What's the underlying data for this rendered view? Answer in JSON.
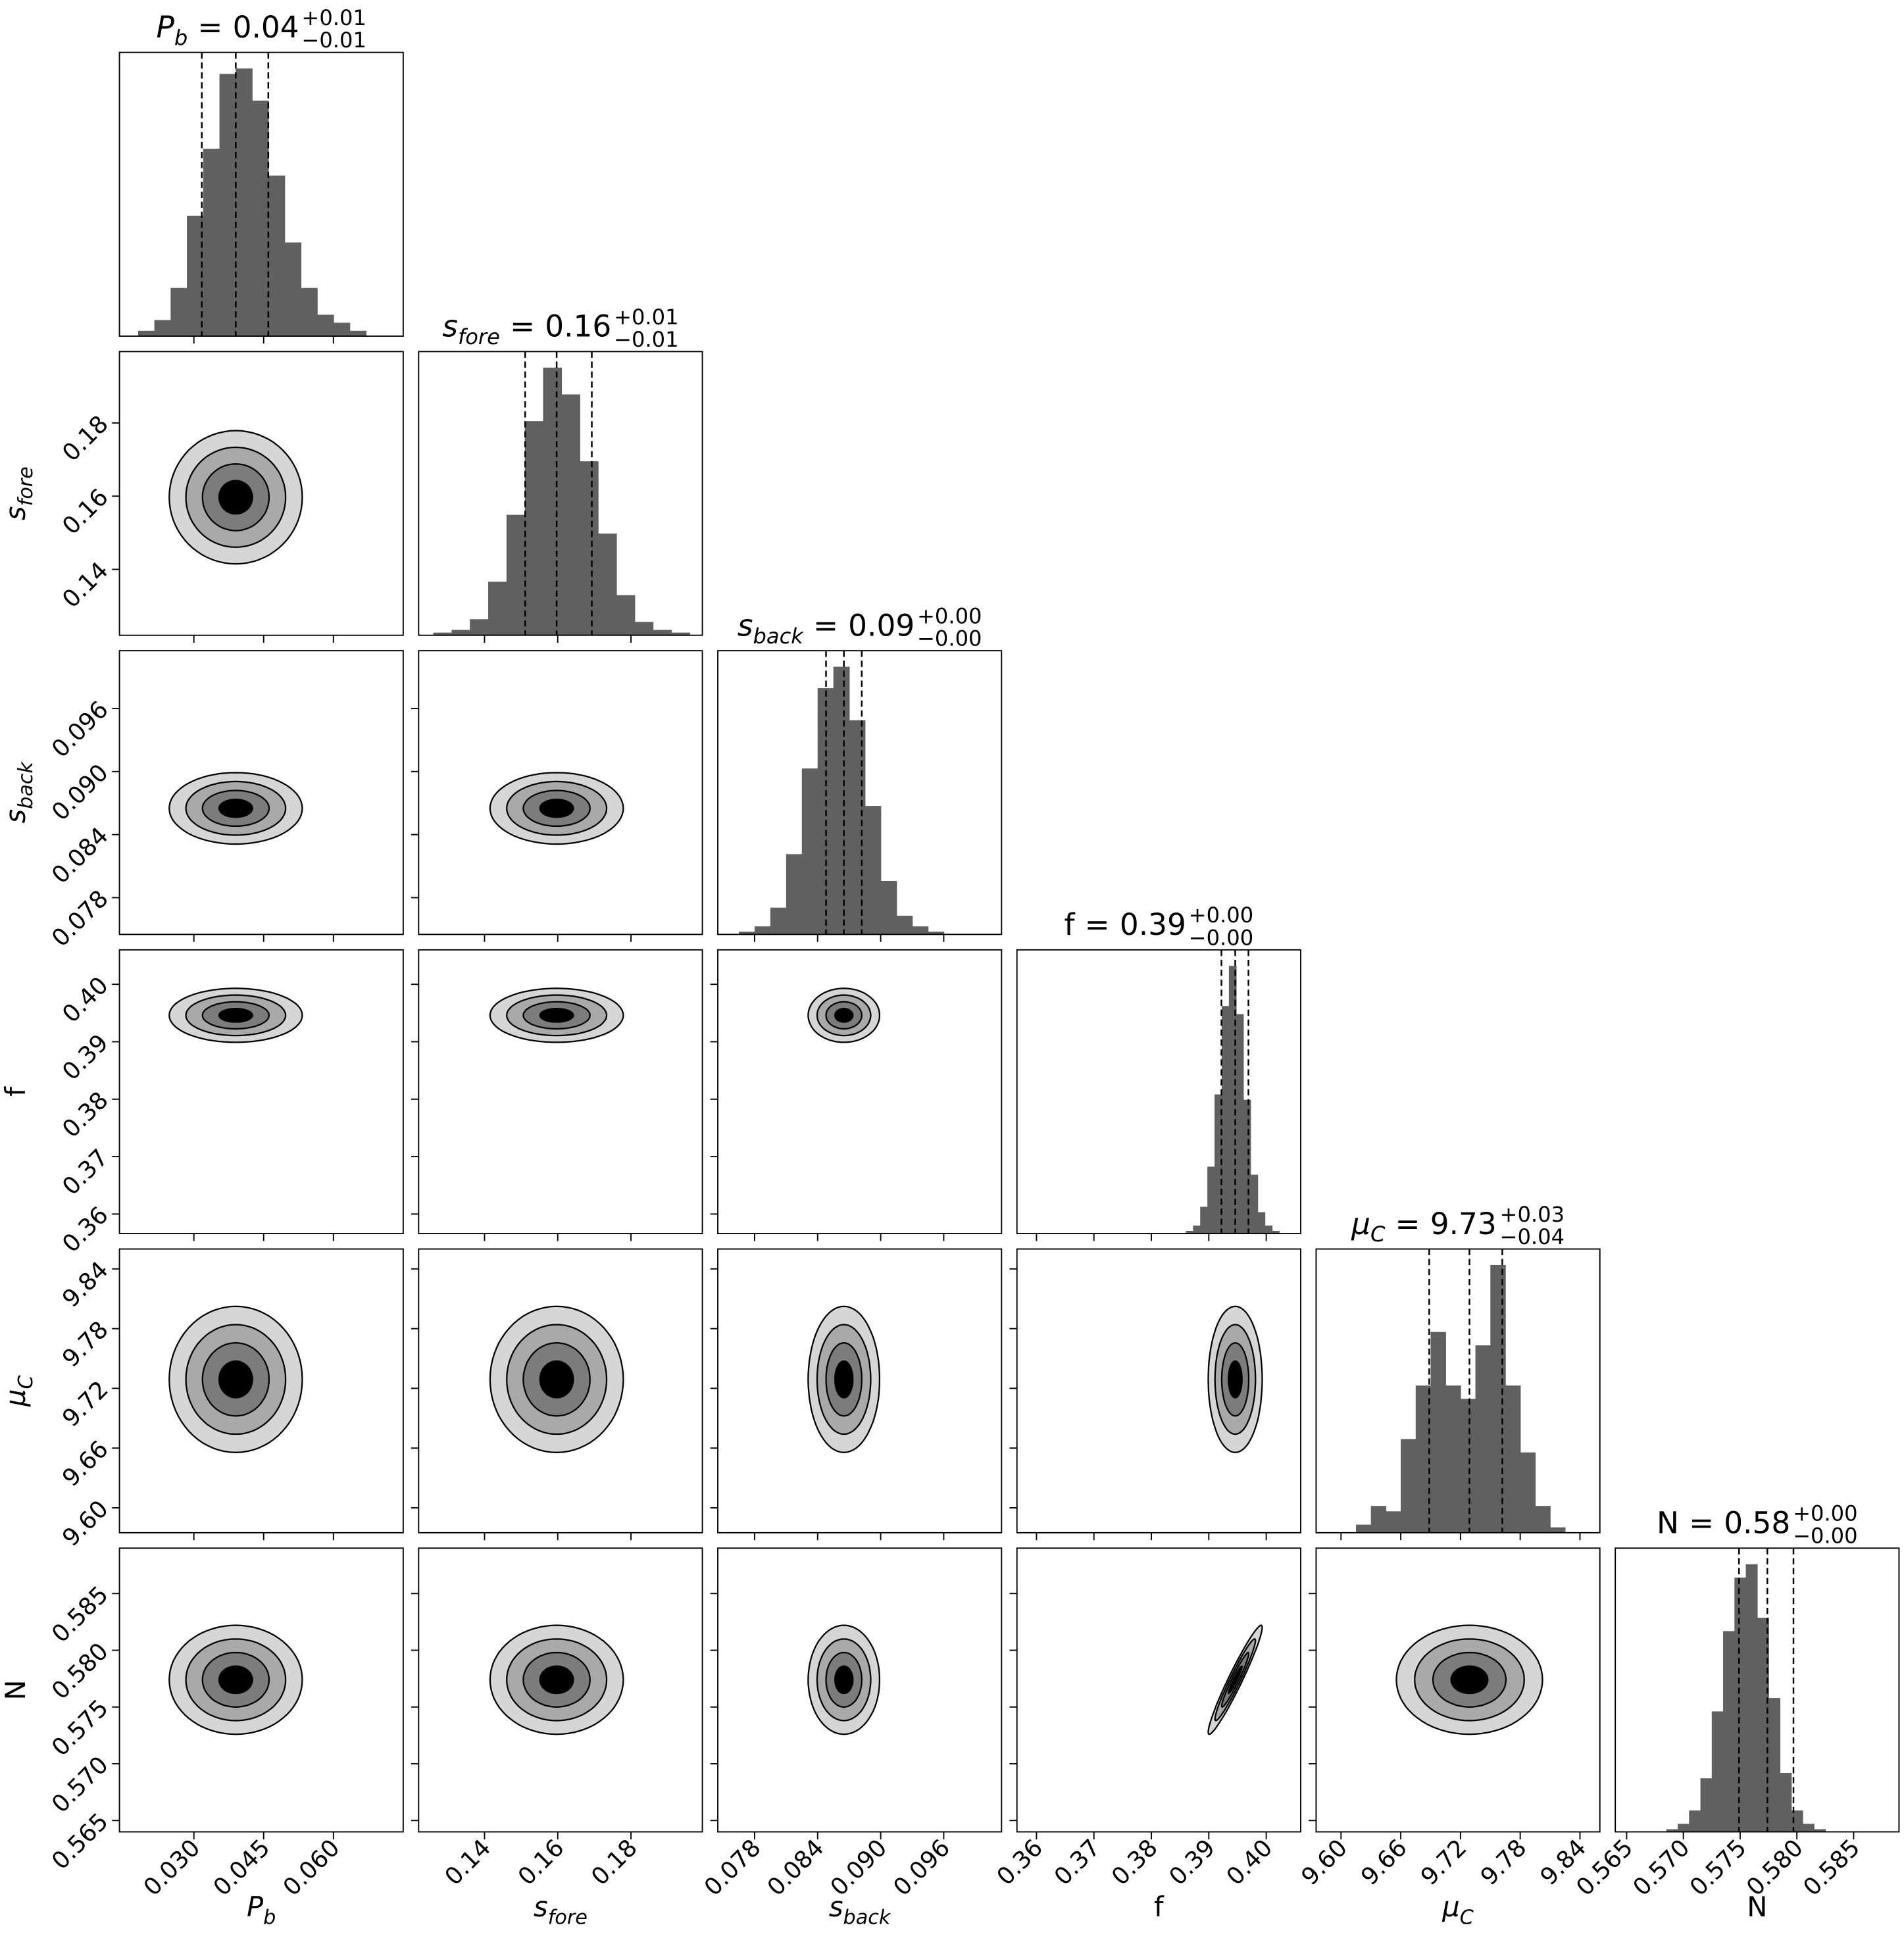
{
  "chart_data": {
    "type": "corner",
    "equals": "=",
    "hist_color": "#606060",
    "contour_levels": [
      2,
      1.5,
      1,
      0.5
    ],
    "contour_colors": [
      "#d6d6d6",
      "#a9a9a9",
      "#7c7c7c",
      "#000000"
    ],
    "correlations": [
      {
        "pair": [
          3,
          5
        ],
        "rho": 0.96
      }
    ],
    "parameters": [
      {
        "label": {
          "text": "P",
          "sub": "b",
          "italic": true
        },
        "title": {
          "value": "0.04",
          "plus": "+0.01",
          "minus": "−0.01"
        },
        "lim": [
          0.014,
          0.075
        ],
        "ticks": [
          {
            "value": 0.03,
            "label": "0.030"
          },
          0.045,
          {
            "value": 0.06,
            "label": "0.060"
          }
        ],
        "quantiles": [
          0.0317,
          0.039,
          0.046
        ],
        "hist": {
          "bins": [
            0.018,
            0.0215,
            0.025,
            0.0285,
            0.032,
            0.0355,
            0.039,
            0.0425,
            0.046,
            0.0495,
            0.053,
            0.0565,
            0.06,
            0.0635,
            0.067
          ],
          "counts": [
            2,
            6,
            18,
            45,
            70,
            98,
            100,
            88,
            60,
            35,
            18,
            8,
            5,
            2
          ]
        }
      },
      {
        "label": {
          "text": "s",
          "sub": "fore",
          "italic": true
        },
        "title": {
          "value": "0.16",
          "plus": "+0.01",
          "minus": "−0.01"
        },
        "lim": [
          0.122,
          0.1995
        ],
        "ticks": [
          0.14,
          0.16,
          0.18
        ],
        "quantiles": [
          0.1511,
          0.1597,
          0.1693
        ],
        "hist": {
          "bins": [
            0.126,
            0.131,
            0.136,
            0.141,
            0.146,
            0.151,
            0.156,
            0.161,
            0.166,
            0.171,
            0.176,
            0.181,
            0.186,
            0.191,
            0.196
          ],
          "counts": [
            1,
            2,
            6,
            20,
            45,
            80,
            100,
            90,
            65,
            38,
            15,
            5,
            2,
            1
          ]
        }
      },
      {
        "label": {
          "text": "s",
          "sub": "back",
          "italic": true
        },
        "title": {
          "value": "0.09",
          "plus": "+0.00",
          "minus": "−0.00"
        },
        "lim": [
          0.0745,
          0.1015
        ],
        "ticks": [
          0.078,
          0.084,
          {
            "value": 0.09,
            "label": "0.090"
          },
          0.096
        ],
        "quantiles": [
          0.0848,
          0.0865,
          0.0882
        ],
        "hist": {
          "bins": [
            0.0765,
            0.078,
            0.0795,
            0.081,
            0.0825,
            0.084,
            0.0855,
            0.087,
            0.0885,
            0.09,
            0.0915,
            0.093,
            0.0945,
            0.096,
            0.0975
          ],
          "counts": [
            1,
            3,
            10,
            30,
            62,
            92,
            100,
            80,
            48,
            20,
            7,
            3,
            1,
            0
          ]
        }
      },
      {
        "label": {
          "text": "f",
          "italic": false
        },
        "title": {
          "value": "0.39",
          "plus": "+0.00",
          "minus": "−0.00"
        },
        "lim": [
          0.3566,
          0.406
        ],
        "ticks": [
          0.36,
          0.37,
          0.38,
          0.39,
          {
            "value": 0.4,
            "label": "0.40"
          }
        ],
        "quantiles": [
          0.3922,
          0.3946,
          0.3969
        ],
        "hist": {
          "bins": [
            0.386,
            0.38725,
            0.3885,
            0.38975,
            0.391,
            0.39225,
            0.3935,
            0.39475,
            0.396,
            0.39725,
            0.3985,
            0.39975,
            0.401,
            0.40225,
            0.4035
          ],
          "counts": [
            1,
            3,
            10,
            25,
            52,
            85,
            100,
            82,
            50,
            22,
            8,
            3,
            1,
            0
          ]
        }
      },
      {
        "label": {
          "text": "μ",
          "sub": "C",
          "italic": true
        },
        "title": {
          "value": "9.73",
          "plus": "+0.03",
          "minus": "−0.04"
        },
        "lim": [
          9.575,
          9.86
        ],
        "ticks": [
          {
            "value": 9.6,
            "label": "9.60"
          },
          9.66,
          9.72,
          9.78,
          9.84
        ],
        "quantiles": [
          9.6886,
          9.729,
          9.762
        ],
        "hist": {
          "bins": [
            9.615,
            9.63,
            9.645,
            9.66,
            9.675,
            9.69,
            9.705,
            9.72,
            9.735,
            9.75,
            9.765,
            9.78,
            9.795,
            9.81,
            9.825
          ],
          "counts": [
            3,
            10,
            8,
            35,
            55,
            75,
            55,
            50,
            70,
            100,
            55,
            30,
            10,
            2
          ]
        }
      },
      {
        "label": {
          "text": "N",
          "italic": false
        },
        "title": {
          "value": "0.58",
          "plus": "+0.00",
          "minus": "−0.00"
        },
        "lim": [
          0.564,
          0.589
        ],
        "ticks": [
          0.565,
          {
            "value": 0.57,
            "label": "0.570"
          },
          0.575,
          {
            "value": 0.58,
            "label": "0.580"
          },
          0.585
        ],
        "quantiles": [
          0.5749,
          0.5774,
          0.5797
        ],
        "hist": {
          "bins": [
            0.5685,
            0.5695,
            0.5705,
            0.5715,
            0.5725,
            0.5735,
            0.5745,
            0.5755,
            0.5765,
            0.5775,
            0.5785,
            0.5795,
            0.5805,
            0.5815,
            0.5825
          ],
          "counts": [
            1,
            3,
            8,
            20,
            45,
            75,
            95,
            100,
            80,
            50,
            22,
            8,
            3,
            1
          ]
        }
      }
    ]
  }
}
